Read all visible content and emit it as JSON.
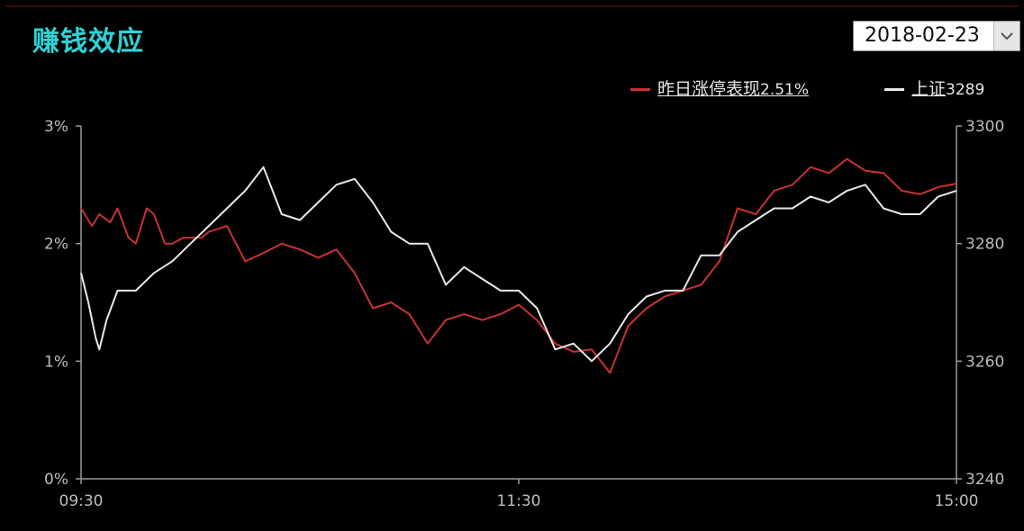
{
  "panel": {
    "title": "赚钱效应"
  },
  "date_selector": {
    "value": "2018-02-23"
  },
  "legend": [
    {
      "label": "昨日涨停表现",
      "value": "2.51%",
      "color": "#c83232"
    },
    {
      "label": "上证",
      "value": "3289",
      "color": "#e8e8e8"
    }
  ],
  "chart_data": {
    "type": "line",
    "x_ticks": [
      "09:30",
      "11:30",
      "15:00"
    ],
    "y_left_ticks": [
      "0%",
      "1%",
      "2%",
      "3%"
    ],
    "y_left_range": [
      0,
      3
    ],
    "y_right_ticks": [
      "3240",
      "3260",
      "3280",
      "3300"
    ],
    "y_right_range": [
      3240,
      3300
    ],
    "x_range": [
      0,
      240
    ],
    "grid": false,
    "series": [
      {
        "name": "昨日涨停表现",
        "axis": "left",
        "color": "#c83232",
        "x": [
          0,
          3,
          5,
          8,
          10,
          13,
          15,
          18,
          20,
          23,
          25,
          28,
          30,
          33,
          35,
          40,
          45,
          50,
          55,
          60,
          65,
          70,
          75,
          80,
          85,
          90,
          95,
          100,
          105,
          110,
          115,
          120,
          125,
          130,
          135,
          140,
          145,
          150,
          155,
          160,
          165,
          170,
          175,
          180,
          185,
          190,
          195,
          200,
          205,
          210,
          215,
          220,
          225,
          230,
          235,
          240
        ],
        "values": [
          2.3,
          2.15,
          2.25,
          2.18,
          2.3,
          2.05,
          2.0,
          2.3,
          2.25,
          2.0,
          2.0,
          2.05,
          2.05,
          2.05,
          2.1,
          2.15,
          1.85,
          1.92,
          2.0,
          1.95,
          1.88,
          1.95,
          1.75,
          1.45,
          1.5,
          1.4,
          1.15,
          1.35,
          1.4,
          1.35,
          1.4,
          1.48,
          1.35,
          1.15,
          1.08,
          1.1,
          0.9,
          1.3,
          1.45,
          1.55,
          1.6,
          1.65,
          1.85,
          2.3,
          2.25,
          2.45,
          2.5,
          2.65,
          2.6,
          2.72,
          2.62,
          2.6,
          2.45,
          2.42,
          2.48,
          2.51
        ]
      },
      {
        "name": "上证",
        "axis": "right",
        "color": "#e8e8e8",
        "x": [
          0,
          2,
          4,
          5,
          7,
          10,
          15,
          20,
          25,
          30,
          35,
          40,
          45,
          50,
          55,
          60,
          65,
          70,
          75,
          80,
          85,
          90,
          95,
          100,
          105,
          110,
          115,
          120,
          125,
          130,
          135,
          140,
          145,
          150,
          155,
          160,
          165,
          170,
          175,
          180,
          185,
          190,
          195,
          200,
          205,
          210,
          215,
          220,
          225,
          230,
          235,
          240
        ],
        "values": [
          3275,
          3270,
          3264,
          3262,
          3267,
          3272,
          3272,
          3275,
          3277,
          3280,
          3283,
          3286,
          3289,
          3293,
          3285,
          3284,
          3287,
          3290,
          3291,
          3287,
          3282,
          3280,
          3280,
          3273,
          3276,
          3274,
          3272,
          3272,
          3269,
          3262,
          3263,
          3260,
          3263,
          3268,
          3271,
          3272,
          3272,
          3278,
          3278,
          3282,
          3284,
          3286,
          3286,
          3288,
          3287,
          3289,
          3290,
          3286,
          3285,
          3285,
          3288,
          3289
        ]
      }
    ]
  }
}
